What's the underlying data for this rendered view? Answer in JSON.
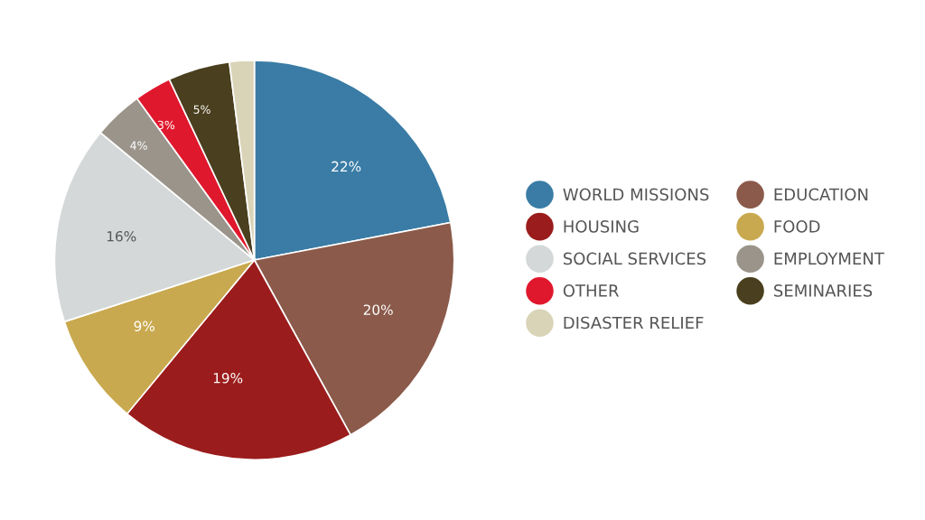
{
  "chart_data": {
    "type": "pie",
    "categories": [
      "WORLD MISSIONS",
      "EDUCATION",
      "HOUSING",
      "FOOD",
      "SOCIAL SERVICES",
      "EMPLOYMENT",
      "OTHER",
      "SEMINARIES",
      "DISASTER RELIEF"
    ],
    "values": [
      22,
      20,
      19,
      9,
      16,
      4,
      3,
      5,
      2
    ],
    "colors": [
      "#3a7ca5",
      "#8b5a4a",
      "#9b1c1c",
      "#c9a94f",
      "#d4d8d8",
      "#9a948a",
      "#e0182d",
      "#4a3f1e",
      "#d9d4b8"
    ],
    "value_labels": [
      "22%",
      "20%",
      "19%",
      "9%",
      "16%",
      "4%",
      "3%",
      "5%",
      null
    ],
    "legend": "right"
  }
}
